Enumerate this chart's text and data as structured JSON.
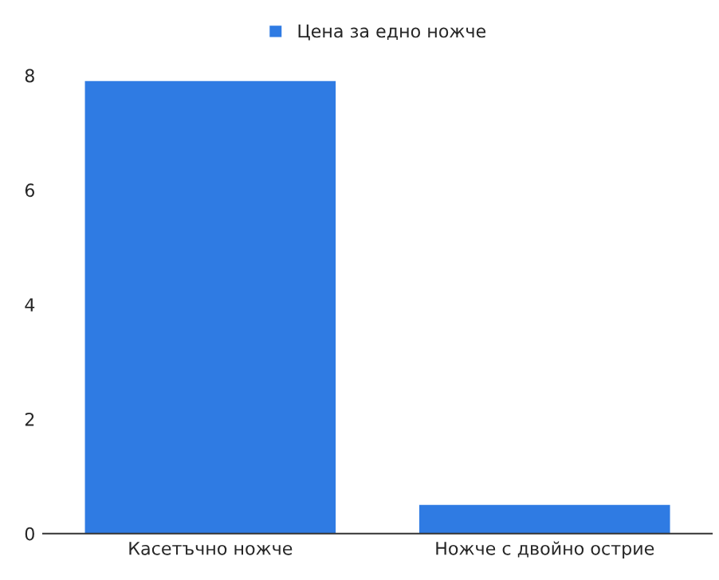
{
  "chart_data": {
    "type": "bar",
    "categories": [
      "Касетъчно ножче",
      "Ножче с двойно острие"
    ],
    "series": [
      {
        "name": "Цена за едно ножче",
        "color": "#2f7be3",
        "values": [
          7.9,
          0.5
        ]
      }
    ],
    "ylim": [
      0,
      8
    ],
    "yticks": [
      0,
      2,
      4,
      6,
      8
    ],
    "grid": false,
    "legend": "top"
  }
}
